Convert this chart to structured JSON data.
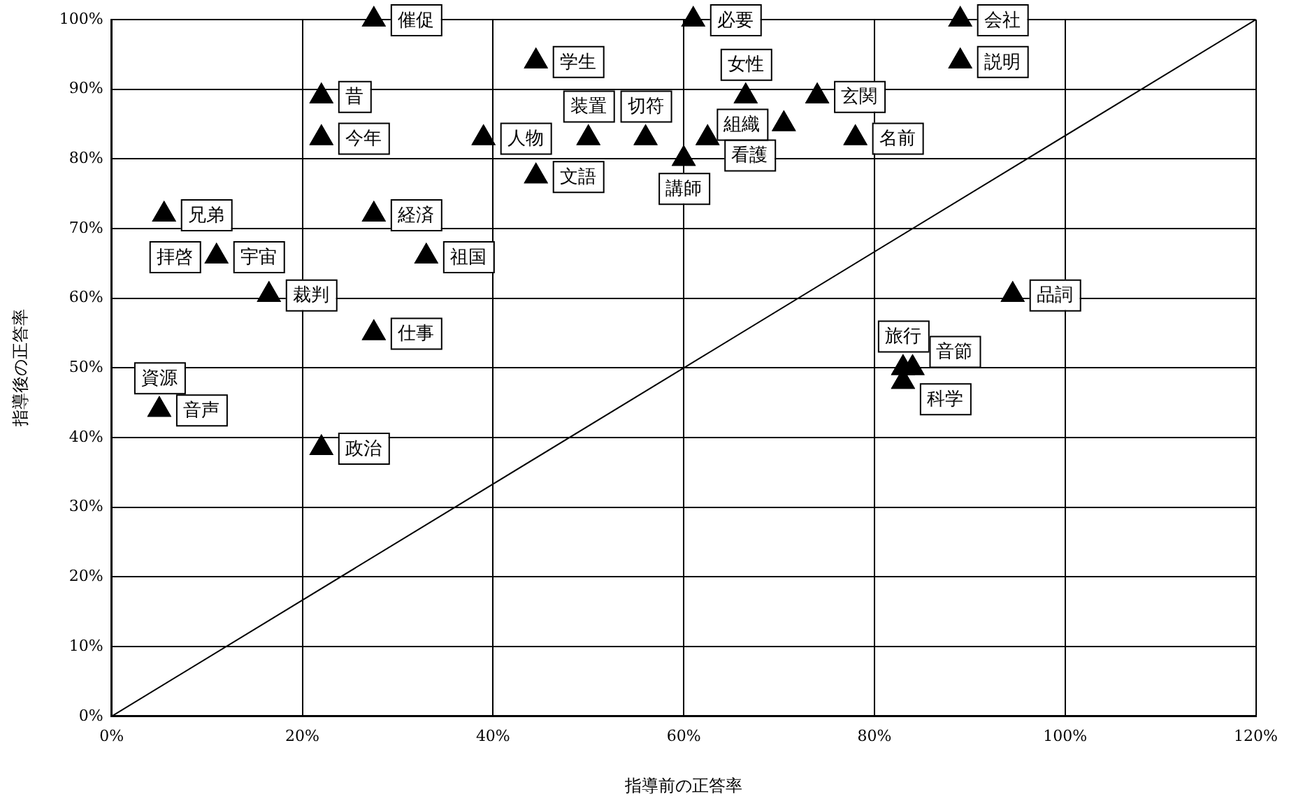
{
  "chart_data": {
    "type": "scatter",
    "xlabel": "指導前の正答率",
    "ylabel": "指導後の正答率",
    "xlim": [
      0,
      120
    ],
    "xticks": [
      {
        "value": 0,
        "label": "0%"
      },
      {
        "value": 20,
        "label": "20%"
      },
      {
        "value": 40,
        "label": "40%"
      },
      {
        "value": 60,
        "label": "60%"
      },
      {
        "value": 80,
        "label": "80%"
      },
      {
        "value": 100,
        "label": "100%"
      },
      {
        "value": 120,
        "label": "120%"
      }
    ],
    "ylim": [
      0,
      100
    ],
    "yticks": [
      {
        "value": 0,
        "label": "0%"
      },
      {
        "value": 10,
        "label": "10%"
      },
      {
        "value": 20,
        "label": "20%"
      },
      {
        "value": 30,
        "label": "30%"
      },
      {
        "value": 40,
        "label": "40%"
      },
      {
        "value": 50,
        "label": "50%"
      },
      {
        "value": 60,
        "label": "60%"
      },
      {
        "value": 70,
        "label": "70%"
      },
      {
        "value": 80,
        "label": "80%"
      },
      {
        "value": 90,
        "label": "90%"
      },
      {
        "value": 100,
        "label": "100%"
      }
    ],
    "grid": true,
    "marker": "triangle",
    "series": [
      {
        "color": "#000000",
        "x": [
          27.5,
          22,
          22,
          39,
          5.5,
          11,
          27.5,
          33,
          16.5,
          27.5,
          5,
          22,
          61,
          44.5,
          44.5,
          50,
          56,
          62.5,
          60,
          66.5,
          70.5,
          74,
          78,
          89,
          89,
          94.5,
          83,
          83,
          84
        ],
        "values": [
          100,
          89,
          83,
          83,
          72,
          66,
          72,
          66,
          60.5,
          55,
          44,
          38.5,
          100,
          94,
          77.5,
          83,
          83,
          83,
          80,
          89,
          85,
          89,
          83,
          100,
          94,
          60.5,
          50,
          48,
          50
        ]
      },
      {
        "type": "line",
        "color": "#000000",
        "marker": "none",
        "line_style": "solid",
        "x": [
          0,
          120
        ],
        "values": [
          0,
          100
        ]
      }
    ],
    "annotations": [
      {
        "text": "催促",
        "x": 27.5,
        "y": 100
      },
      {
        "text": "昔",
        "x": 22,
        "y": 89
      },
      {
        "text": "今年",
        "x": 22,
        "y": 83
      },
      {
        "text": "人物",
        "x": 39,
        "y": 83
      },
      {
        "text": "兄弟",
        "x": 5.5,
        "y": 72
      },
      {
        "text": "宇宙",
        "x": 11,
        "y": 66
      },
      {
        "text": "拝啓",
        "x": 11,
        "y": 66
      },
      {
        "text": "経済",
        "x": 27.5,
        "y": 72
      },
      {
        "text": "祖国",
        "x": 33,
        "y": 66
      },
      {
        "text": "裁判",
        "x": 16.5,
        "y": 60.5
      },
      {
        "text": "仕事",
        "x": 27.5,
        "y": 55
      },
      {
        "text": "音声",
        "x": 5,
        "y": 44
      },
      {
        "text": "資源",
        "x": 5,
        "y": 44
      },
      {
        "text": "政治",
        "x": 22,
        "y": 38.5
      },
      {
        "text": "必要",
        "x": 61,
        "y": 100
      },
      {
        "text": "学生",
        "x": 44.5,
        "y": 94
      },
      {
        "text": "文語",
        "x": 44.5,
        "y": 77.5
      },
      {
        "text": "装置",
        "x": 50,
        "y": 83
      },
      {
        "text": "切符",
        "x": 56,
        "y": 83
      },
      {
        "text": "看護",
        "x": 62.5,
        "y": 83
      },
      {
        "text": "講師",
        "x": 60,
        "y": 80
      },
      {
        "text": "女性",
        "x": 66.5,
        "y": 89
      },
      {
        "text": "組織",
        "x": 70.5,
        "y": 85
      },
      {
        "text": "玄関",
        "x": 74,
        "y": 89
      },
      {
        "text": "名前",
        "x": 78,
        "y": 83
      },
      {
        "text": "会社",
        "x": 89,
        "y": 100
      },
      {
        "text": "説明",
        "x": 89,
        "y": 94
      },
      {
        "text": "品詞",
        "x": 94.5,
        "y": 60.5
      },
      {
        "text": "旅行",
        "x": 83,
        "y": 50
      },
      {
        "text": "科学",
        "x": 83,
        "y": 48
      },
      {
        "text": "音節",
        "x": 84,
        "y": 50
      }
    ]
  }
}
